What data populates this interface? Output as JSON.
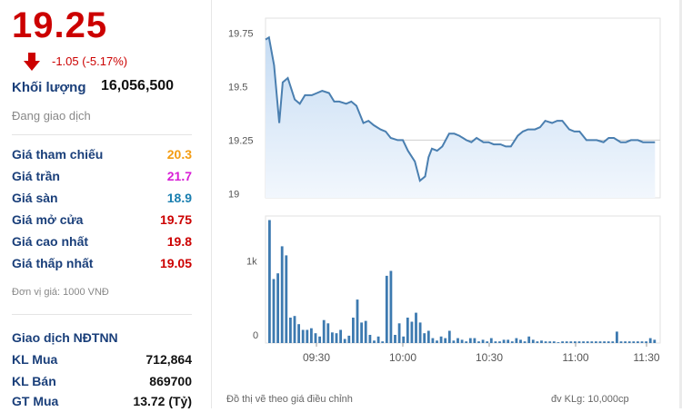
{
  "quote": {
    "price": "19.25",
    "change": "-1.05 (-5.17%)",
    "volume_label": "Khối lượng",
    "volume_value": "16,056,500",
    "status": "Đang giao dịch"
  },
  "price_stats": [
    {
      "label": "Giá tham chiếu",
      "value": "20.3",
      "color": "#f39c12"
    },
    {
      "label": "Giá trần",
      "value": "21.7",
      "color": "#d81ed6"
    },
    {
      "label": "Giá sàn",
      "value": "18.9",
      "color": "#1a7fb0"
    },
    {
      "label": "Giá mở cửa",
      "value": "19.75",
      "color": "#cc0000"
    },
    {
      "label": "Giá cao nhất",
      "value": "19.8",
      "color": "#cc0000"
    },
    {
      "label": "Giá thấp nhất",
      "value": "19.05",
      "color": "#cc0000"
    }
  ],
  "unit_note": "Đơn vị giá: 1000 VNĐ",
  "foreign": {
    "title": "Giao dịch NĐTNN",
    "rows": [
      {
        "label": "KL Mua",
        "value": "712,864"
      },
      {
        "label": "KL Bán",
        "value": "869700"
      },
      {
        "label": "GT Mua",
        "value": "13.72 (Tỷ)"
      }
    ]
  },
  "colors": {
    "down": "#cc0000",
    "label": "#1a3f7a",
    "line": "#4a7fb0",
    "area": "#d6e6f7",
    "bars": "#3d7ab0"
  },
  "chart_footer": {
    "left": "Đồ thị vẽ theo giá điều chỉnh",
    "right": "đv KLg: 10,000cp"
  },
  "chart_data": [
    {
      "type": "area",
      "x_labels": [
        "09:30",
        "10:00",
        "10:30",
        "11:00",
        "11:30"
      ],
      "yticks": [
        19,
        19.25,
        19.5,
        19.75
      ],
      "ylim": [
        18.98,
        19.82
      ],
      "x": [
        9.25,
        9.27,
        9.3,
        9.33,
        9.35,
        9.38,
        9.42,
        9.45,
        9.48,
        9.52,
        9.55,
        9.58,
        9.62,
        9.65,
        9.68,
        9.72,
        9.75,
        9.78,
        9.82,
        9.85,
        9.88,
        9.92,
        9.95,
        9.98,
        10.02,
        10.05,
        10.08,
        10.12,
        10.15,
        10.18,
        10.2,
        10.22,
        10.25,
        10.28,
        10.32,
        10.35,
        10.38,
        10.42,
        10.45,
        10.48,
        10.52,
        10.55,
        10.58,
        10.62,
        10.65,
        10.68,
        10.72,
        10.75,
        10.78,
        10.82,
        10.85,
        10.88,
        10.92,
        10.95,
        10.98,
        11.02,
        11.05,
        11.08,
        11.12,
        11.15,
        11.18,
        11.22,
        11.25,
        11.28,
        11.32,
        11.35,
        11.38,
        11.42,
        11.45,
        11.48,
        11.52
      ],
      "values": [
        19.72,
        19.73,
        19.6,
        19.33,
        19.52,
        19.54,
        19.44,
        19.42,
        19.46,
        19.46,
        19.47,
        19.48,
        19.47,
        19.43,
        19.43,
        19.42,
        19.43,
        19.41,
        19.33,
        19.34,
        19.32,
        19.3,
        19.29,
        19.26,
        19.25,
        19.25,
        19.2,
        19.15,
        19.06,
        19.08,
        19.17,
        19.21,
        19.2,
        19.22,
        19.28,
        19.28,
        19.27,
        19.25,
        19.24,
        19.26,
        19.24,
        19.24,
        19.23,
        19.23,
        19.22,
        19.22,
        19.27,
        19.29,
        19.3,
        19.3,
        19.31,
        19.34,
        19.33,
        19.34,
        19.34,
        19.3,
        19.29,
        19.29,
        19.25,
        19.25,
        19.25,
        19.24,
        19.26,
        19.26,
        19.24,
        19.24,
        19.25,
        19.25,
        19.24,
        19.24,
        19.24
      ]
    },
    {
      "type": "bar",
      "yticks_label": [
        "0",
        "1k"
      ],
      "ylim": [
        0,
        1550
      ],
      "values": [
        1500,
        780,
        850,
        1180,
        1070,
        310,
        330,
        230,
        160,
        160,
        180,
        120,
        80,
        280,
        240,
        130,
        120,
        160,
        50,
        90,
        310,
        530,
        250,
        270,
        100,
        30,
        80,
        20,
        820,
        880,
        100,
        240,
        80,
        310,
        260,
        370,
        250,
        120,
        150,
        60,
        30,
        80,
        60,
        150,
        30,
        60,
        40,
        20,
        60,
        60,
        20,
        40,
        20,
        60,
        20,
        20,
        40,
        40,
        20,
        60,
        40,
        20,
        80,
        40,
        20,
        30,
        20,
        20,
        20,
        10,
        20,
        20,
        20,
        20,
        20,
        20,
        20,
        20,
        20,
        20,
        20,
        20,
        20,
        140,
        20,
        20,
        20,
        20,
        20,
        20,
        20,
        60,
        40
      ]
    }
  ]
}
